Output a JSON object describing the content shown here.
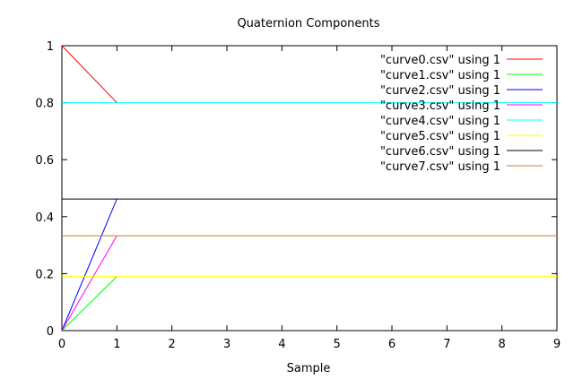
{
  "chart_data": {
    "type": "line",
    "title": "Quaternion Components",
    "xlabel": "Sample",
    "ylabel": "",
    "xlim": [
      0,
      9
    ],
    "ylim": [
      0,
      1
    ],
    "x_ticks": [
      "0",
      "1",
      "2",
      "3",
      "4",
      "5",
      "6",
      "7",
      "8",
      "9"
    ],
    "y_ticks": [
      "0",
      "0.2",
      "0.4",
      "0.6",
      "0.8",
      "1"
    ],
    "grid": false,
    "legend_position": "top-right",
    "series": [
      {
        "name": "\"curve0.csv\" using 1",
        "color": "#ff0000",
        "x": [
          0,
          1
        ],
        "y": [
          1.0,
          0.8
        ]
      },
      {
        "name": "\"curve1.csv\" using 1",
        "color": "#00ff00",
        "x": [
          0,
          1
        ],
        "y": [
          0.0,
          0.19
        ]
      },
      {
        "name": "\"curve2.csv\" using 1",
        "color": "#0000ff",
        "x": [
          0,
          1
        ],
        "y": [
          0.0,
          0.462
        ]
      },
      {
        "name": "\"curve3.csv\" using 1",
        "color": "#ff00ff",
        "x": [
          0,
          1
        ],
        "y": [
          0.0,
          0.333
        ]
      },
      {
        "name": "\"curve4.csv\" using 1",
        "color": "#00ffff",
        "x": [
          0,
          9
        ],
        "y": [
          0.8,
          0.8
        ]
      },
      {
        "name": "\"curve5.csv\" using 1",
        "color": "#ffff00",
        "x": [
          0,
          9
        ],
        "y": [
          0.19,
          0.19
        ]
      },
      {
        "name": "\"curve6.csv\" using 1",
        "color": "#000000",
        "x": [
          0,
          9
        ],
        "y": [
          0.462,
          0.462
        ]
      },
      {
        "name": "\"curve7.csv\" using 1",
        "color": "#c8821e",
        "x": [
          0,
          9
        ],
        "y": [
          0.333,
          0.333
        ]
      }
    ]
  }
}
